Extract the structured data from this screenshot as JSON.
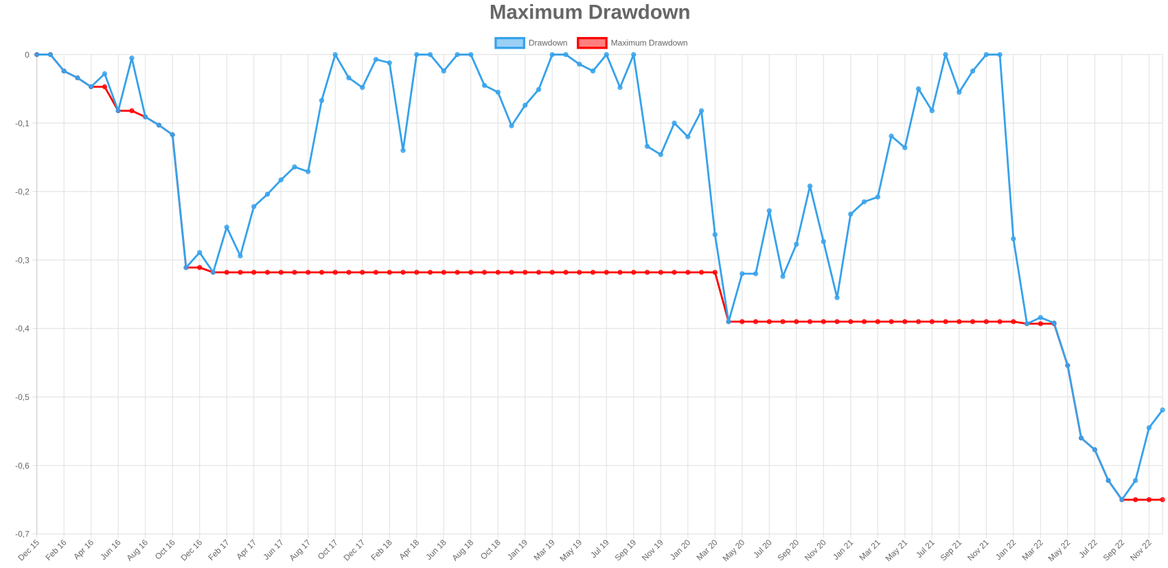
{
  "chart_data": {
    "type": "line",
    "title": "Maximum Drawdown",
    "categories": [
      "Dec 15",
      null,
      "Feb 16",
      null,
      "Apr 16",
      null,
      "Jun 16",
      null,
      "Aug 16",
      null,
      "Oct 16",
      null,
      "Dec 16",
      null,
      "Feb 17",
      null,
      "Apr 17",
      null,
      "Jun 17",
      null,
      "Aug 17",
      null,
      "Oct 17",
      null,
      "Dec 17",
      null,
      "Feb 18",
      null,
      "Apr 18",
      null,
      "Jun 18",
      null,
      "Aug 18",
      null,
      "Oct 18",
      null,
      "Jan 19",
      null,
      "Mar 19",
      null,
      "May 19",
      null,
      "Jul 19",
      null,
      "Sep 19",
      null,
      "Nov 19",
      null,
      "Jan 20",
      null,
      "Mar 20",
      null,
      "May 20",
      null,
      "Jul 20",
      null,
      "Sep 20",
      null,
      "Nov 20",
      null,
      "Jan 21",
      null,
      "Mar 21",
      null,
      "May 21",
      null,
      "Jul 21",
      null,
      "Sep 21",
      null,
      "Nov 21",
      null,
      "Jan 22",
      null,
      "Mar 22",
      null,
      "May 22",
      null,
      "Jul 22",
      null,
      "Sep 22",
      null,
      "Nov 22",
      null
    ],
    "series": [
      {
        "name": "Drawdown",
        "color": "#36a2eb",
        "values": [
          0,
          0,
          -0.024,
          -0.034,
          -0.047,
          -0.028,
          -0.082,
          -0.005,
          -0.091,
          -0.103,
          -0.117,
          -0.311,
          -0.289,
          -0.318,
          -0.252,
          -0.294,
          -0.222,
          -0.204,
          -0.183,
          -0.164,
          -0.171,
          -0.067,
          0,
          -0.034,
          -0.048,
          -0.007,
          -0.012,
          -0.14,
          0,
          0,
          -0.024,
          0,
          0,
          -0.045,
          -0.055,
          -0.104,
          -0.074,
          -0.051,
          0,
          0,
          -0.014,
          -0.024,
          0,
          -0.048,
          0,
          -0.134,
          -0.146,
          -0.1,
          -0.12,
          -0.082,
          -0.263,
          -0.39,
          -0.32,
          -0.32,
          -0.228,
          -0.324,
          -0.277,
          -0.192,
          -0.273,
          -0.355,
          -0.233,
          -0.215,
          -0.208,
          -0.119,
          -0.136,
          -0.05,
          -0.082,
          0,
          -0.055,
          -0.024,
          0,
          0,
          -0.269,
          -0.393,
          -0.384,
          -0.392,
          -0.454,
          -0.56,
          -0.577,
          -0.622,
          -0.65,
          -0.622,
          -0.545,
          -0.519
        ]
      },
      {
        "name": "Maximum Drawdown",
        "color": "#ff0000",
        "values": [
          0,
          0,
          -0.024,
          -0.034,
          -0.047,
          -0.047,
          -0.082,
          -0.082,
          -0.091,
          -0.103,
          -0.117,
          -0.311,
          -0.311,
          -0.318,
          -0.318,
          -0.318,
          -0.318,
          -0.318,
          -0.318,
          -0.318,
          -0.318,
          -0.318,
          -0.318,
          -0.318,
          -0.318,
          -0.318,
          -0.318,
          -0.318,
          -0.318,
          -0.318,
          -0.318,
          -0.318,
          -0.318,
          -0.318,
          -0.318,
          -0.318,
          -0.318,
          -0.318,
          -0.318,
          -0.318,
          -0.318,
          -0.318,
          -0.318,
          -0.318,
          -0.318,
          -0.318,
          -0.318,
          -0.318,
          -0.318,
          -0.318,
          -0.318,
          -0.39,
          -0.39,
          -0.39,
          -0.39,
          -0.39,
          -0.39,
          -0.39,
          -0.39,
          -0.39,
          -0.39,
          -0.39,
          -0.39,
          -0.39,
          -0.39,
          -0.39,
          -0.39,
          -0.39,
          -0.39,
          -0.39,
          -0.39,
          -0.39,
          -0.39,
          -0.393,
          -0.393,
          -0.393,
          -0.454,
          -0.56,
          -0.577,
          -0.622,
          -0.65,
          -0.65,
          -0.65,
          -0.65
        ]
      }
    ],
    "ylim": [
      -0.7,
      0
    ],
    "yticks": [
      0,
      {
        "value": -0.1,
        "label": "-0,1"
      },
      {
        "value": -0.2,
        "label": "-0,2"
      },
      {
        "value": -0.3,
        "label": "-0,3"
      },
      {
        "value": -0.4,
        "label": "-0,4"
      },
      {
        "value": -0.5,
        "label": "-0,5"
      },
      {
        "value": -0.6,
        "label": "-0,6"
      },
      {
        "value": -0.7,
        "label": "-0,7"
      }
    ],
    "grid": true,
    "legend": "top"
  }
}
